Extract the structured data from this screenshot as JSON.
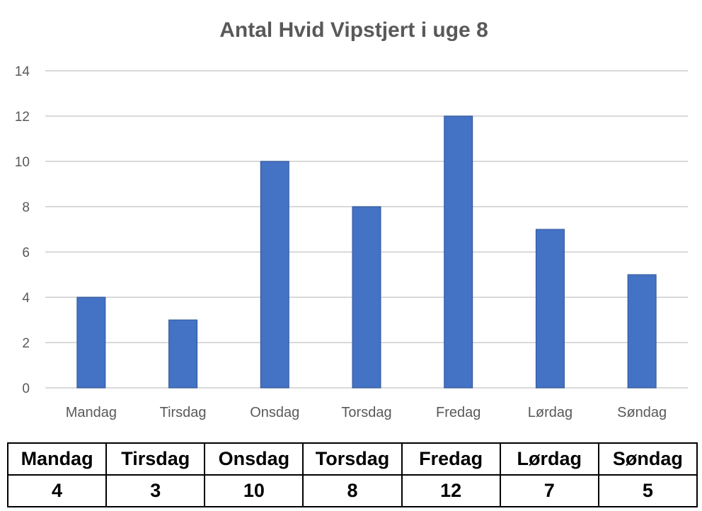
{
  "chart_data": {
    "type": "bar",
    "title": "Antal Hvid Vipstjert i uge 8",
    "categories": [
      "Mandag",
      "Tirsdag",
      "Onsdag",
      "Torsdag",
      "Fredag",
      "Lørdag",
      "Søndag"
    ],
    "values": [
      4,
      3,
      10,
      8,
      12,
      7,
      5
    ],
    "xlabel": "",
    "ylabel": "",
    "ylim": [
      0,
      14
    ],
    "yticks": [
      "0",
      "2",
      "4",
      "6",
      "8",
      "10",
      "12",
      "14"
    ],
    "grid": true,
    "bar_color": "#4472C4"
  },
  "table": {
    "headers": [
      "Mandag",
      "Tirsdag",
      "Onsdag",
      "Torsdag",
      "Fredag",
      "Lørdag",
      "Søndag"
    ],
    "values": [
      "4",
      "3",
      "10",
      "8",
      "12",
      "7",
      "5"
    ]
  }
}
